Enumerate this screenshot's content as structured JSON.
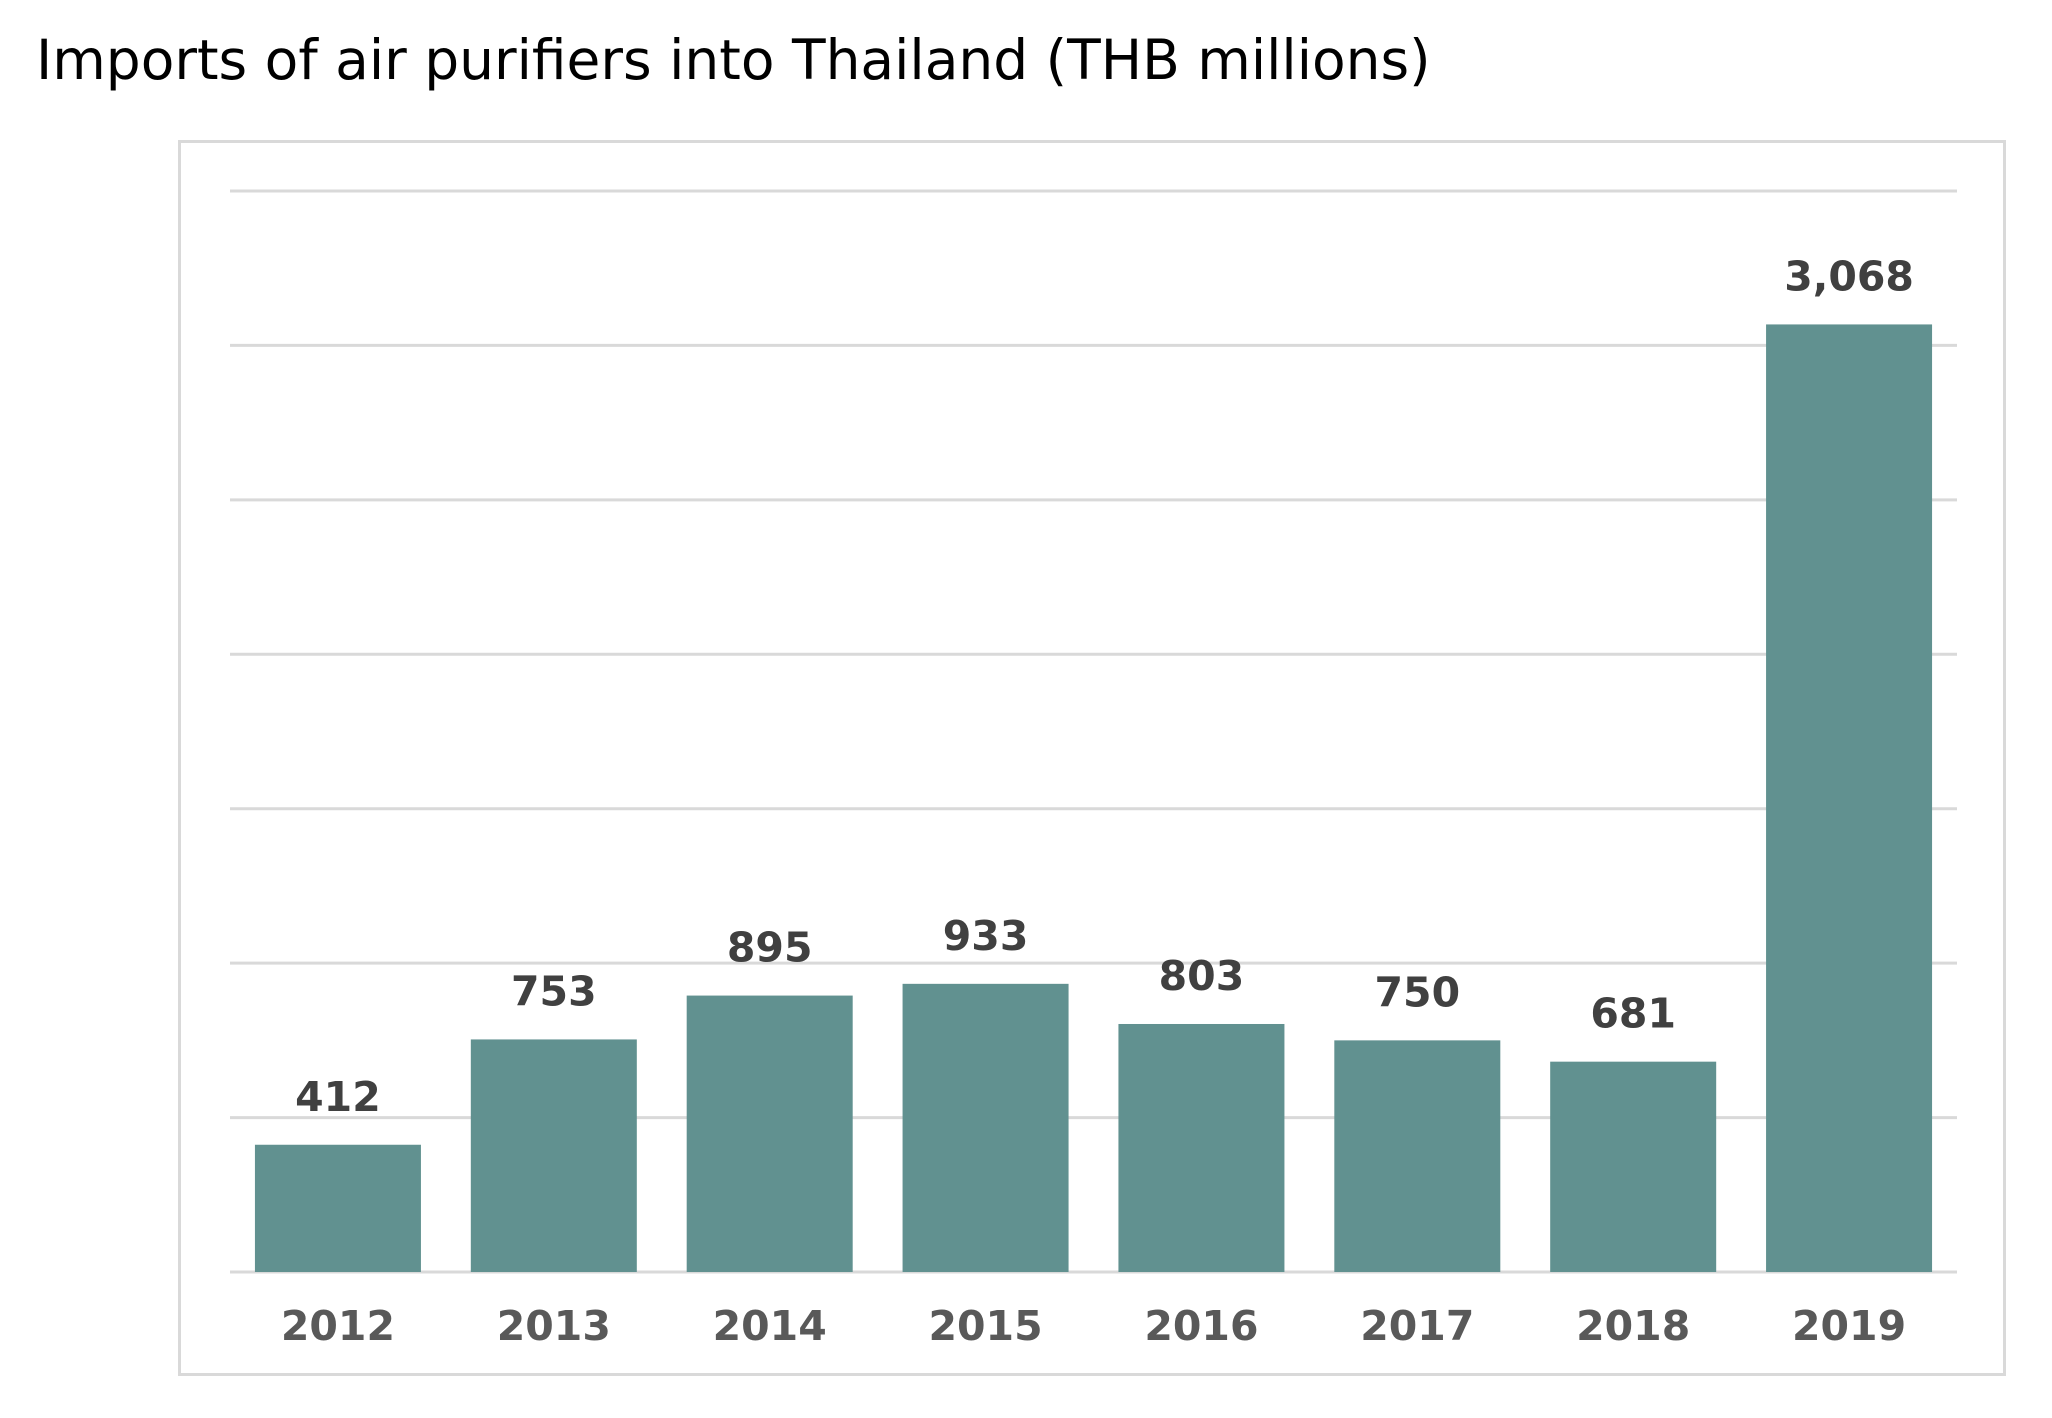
{
  "chart_data": {
    "type": "bar",
    "title": "Imports of air purifiers into Thailand (THB millions)",
    "xlabel": "",
    "ylabel": "",
    "categories": [
      "2012",
      "2013",
      "2014",
      "2015",
      "2016",
      "2017",
      "2018",
      "2019"
    ],
    "values": [
      412,
      753,
      895,
      933,
      803,
      750,
      681,
      3068
    ],
    "value_labels": [
      "412",
      "753",
      "895",
      "933",
      "803",
      "750",
      "681",
      "3,068"
    ],
    "ylim": [
      0,
      3500
    ],
    "y_gridline_step": 500,
    "grid": true,
    "y_tick_labels_shown": false,
    "legend": "none",
    "colors": {
      "bar": "#619190",
      "gridline": "#d9d9d9",
      "value_label": "#404040",
      "tick_label": "#595959"
    }
  }
}
